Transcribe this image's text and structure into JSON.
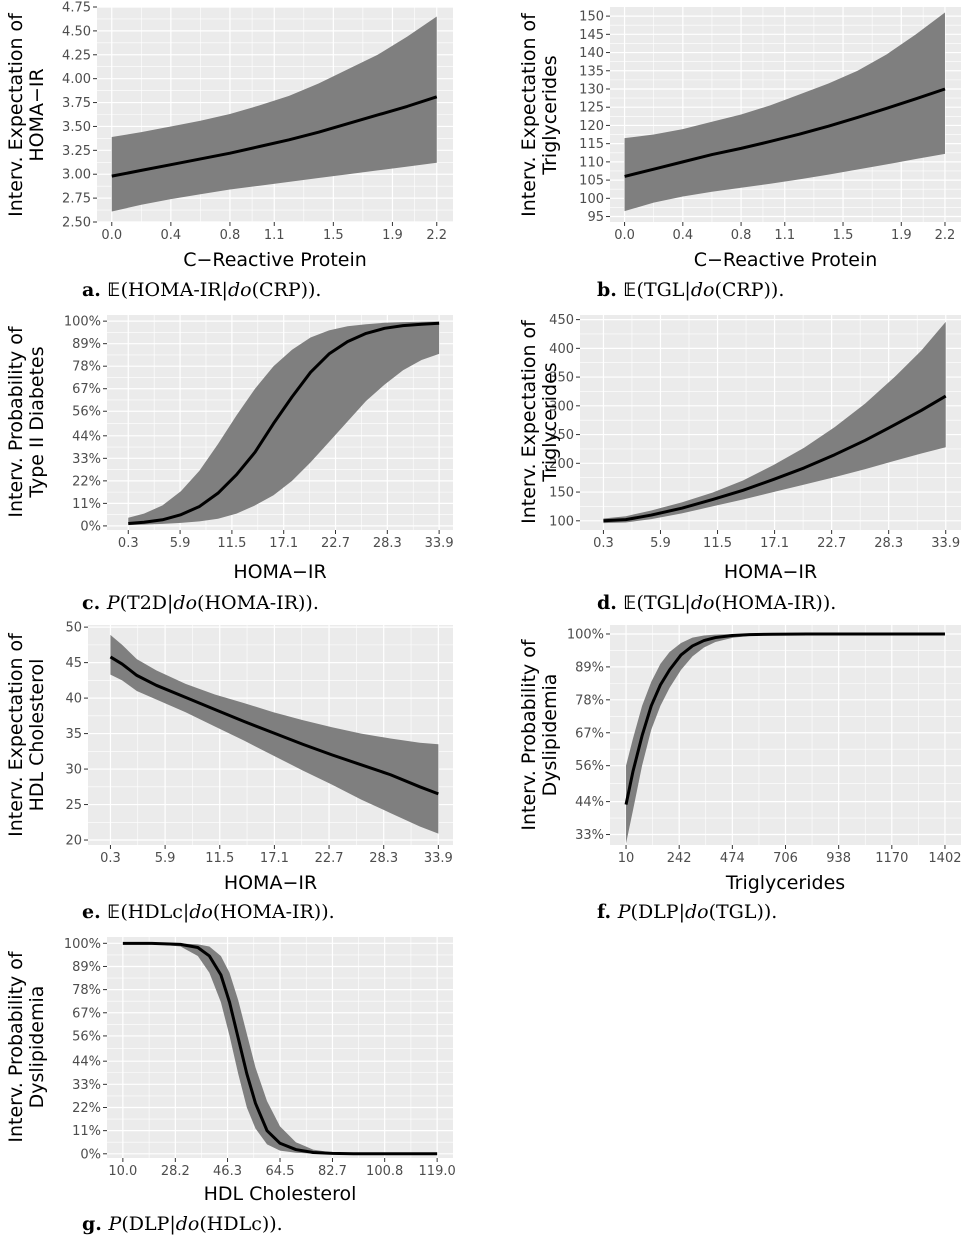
{
  "colors": {
    "panel": "#ebebeb",
    "grid": "#ffffff",
    "band": "#7f7f7f",
    "line": "#000000",
    "tick_text": "#4d4d4d"
  },
  "chart_data": [
    {
      "id": "a",
      "type": "line",
      "xlabel": "C−Reactive Protein",
      "ylabel": [
        "Interv. Expectation of",
        "HOMA−IR"
      ],
      "xticks": [
        "0.0",
        "0.4",
        "0.8",
        "1.1",
        "1.5",
        "1.9",
        "2.2"
      ],
      "xtick_values": [
        0.0,
        0.4,
        0.8,
        1.1,
        1.5,
        1.9,
        2.2
      ],
      "yticks": [
        "2.50",
        "2.75",
        "3.00",
        "3.25",
        "3.50",
        "3.75",
        "4.00",
        "4.25",
        "4.50",
        "4.75"
      ],
      "ytick_values": [
        2.5,
        2.75,
        3.0,
        3.25,
        3.5,
        3.75,
        4.0,
        4.25,
        4.5,
        4.75
      ],
      "xlim": [
        -0.1,
        2.31
      ],
      "ylim": [
        2.5,
        4.75
      ],
      "x": [
        0.0,
        0.2,
        0.4,
        0.6,
        0.8,
        1.0,
        1.2,
        1.4,
        1.6,
        1.8,
        2.0,
        2.2
      ],
      "mean": [
        2.98,
        3.04,
        3.1,
        3.16,
        3.22,
        3.29,
        3.36,
        3.44,
        3.53,
        3.62,
        3.71,
        3.81
      ],
      "lower": [
        2.61,
        2.68,
        2.74,
        2.79,
        2.84,
        2.88,
        2.92,
        2.96,
        3.0,
        3.04,
        3.08,
        3.12
      ],
      "upper": [
        3.39,
        3.44,
        3.5,
        3.56,
        3.63,
        3.72,
        3.82,
        3.95,
        4.1,
        4.25,
        4.44,
        4.65
      ],
      "caption": {
        "label": "a.",
        "op": "𝔼",
        "parts": [
          "(HOMA-IR|",
          "do",
          "(CRP))."
        ]
      }
    },
    {
      "id": "b",
      "type": "line",
      "xlabel": "C−Reactive Protein",
      "ylabel": [
        "Interv. Expectation of",
        "Triglycerides"
      ],
      "xticks": [
        "0.0",
        "0.4",
        "0.8",
        "1.1",
        "1.5",
        "1.9",
        "2.2"
      ],
      "xtick_values": [
        0.0,
        0.4,
        0.8,
        1.1,
        1.5,
        1.9,
        2.2
      ],
      "yticks": [
        "95",
        "100",
        "105",
        "110",
        "115",
        "120",
        "125",
        "130",
        "135",
        "140",
        "145",
        "150"
      ],
      "ytick_values": [
        95,
        100,
        105,
        110,
        115,
        120,
        125,
        130,
        135,
        140,
        145,
        150
      ],
      "xlim": [
        -0.1,
        2.31
      ],
      "ylim": [
        93.5,
        152.5
      ],
      "x": [
        0.0,
        0.2,
        0.4,
        0.6,
        0.8,
        1.0,
        1.2,
        1.4,
        1.6,
        1.8,
        2.0,
        2.2
      ],
      "mean": [
        106,
        108,
        110,
        112,
        113.7,
        115.6,
        117.6,
        119.8,
        122.2,
        124.7,
        127.3,
        130
      ],
      "lower": [
        96.5,
        98.8,
        100.5,
        101.8,
        102.9,
        104,
        105.2,
        106.5,
        107.9,
        109.3,
        110.8,
        112.2
      ],
      "upper": [
        116.5,
        117.5,
        119,
        121,
        123,
        125.5,
        128.5,
        131.5,
        135,
        139.5,
        145,
        151
      ],
      "caption": {
        "label": "b.",
        "op": "𝔼",
        "parts": [
          "(TGL|",
          "do",
          "(CRP))."
        ]
      }
    },
    {
      "id": "c",
      "type": "line",
      "xlabel": "HOMA−IR",
      "ylabel": [
        "Interv. Probability of",
        "Type II Diabetes"
      ],
      "xticks": [
        "0.3",
        "5.9",
        "11.5",
        "17.1",
        "22.7",
        "28.3",
        "33.9"
      ],
      "xtick_values": [
        0.3,
        5.9,
        11.5,
        17.1,
        22.7,
        28.3,
        33.9
      ],
      "yticks": [
        "0%",
        "11%",
        "22%",
        "33%",
        "44%",
        "56%",
        "67%",
        "78%",
        "89%",
        "100%"
      ],
      "ytick_values": [
        0,
        11,
        22,
        33,
        44,
        56,
        67,
        78,
        89,
        100
      ],
      "xlim": [
        -2.0,
        35.4
      ],
      "ylim": [
        -2,
        103
      ],
      "x": [
        0.3,
        2.0,
        4.0,
        6.0,
        8.0,
        10.0,
        12.0,
        14.0,
        16.0,
        18.0,
        20.0,
        22.0,
        24.0,
        26.0,
        28.0,
        30.0,
        32.0,
        33.9
      ],
      "mean": [
        1.2,
        1.8,
        3.0,
        5.5,
        9.5,
        16,
        25,
        36,
        50,
        63,
        75,
        84,
        90,
        94,
        96.5,
        97.8,
        98.5,
        99
      ],
      "lower": [
        0.4,
        0.6,
        1.0,
        1.5,
        2.2,
        3.5,
        6.0,
        10,
        15,
        22,
        31,
        41,
        51,
        61,
        69,
        76,
        81,
        84
      ],
      "upper": [
        4.0,
        6.0,
        10,
        17,
        27,
        40,
        54,
        67,
        78,
        86,
        92,
        95.5,
        97.5,
        98.5,
        99.2,
        99.5,
        99.7,
        99.8
      ],
      "caption": {
        "label": "c.",
        "op": "P",
        "parts": [
          "(T2D|",
          "do",
          "(HOMA-IR))."
        ]
      }
    },
    {
      "id": "d",
      "type": "line",
      "xlabel": "HOMA−IR",
      "ylabel": [
        "Interv. Expectation of",
        "Triglycerides"
      ],
      "xticks": [
        "0.3",
        "5.9",
        "11.5",
        "17.1",
        "22.7",
        "28.3",
        "33.9"
      ],
      "xtick_values": [
        0.3,
        5.9,
        11.5,
        17.1,
        22.7,
        28.3,
        33.9
      ],
      "yticks": [
        "100",
        "150",
        "200",
        "250",
        "300",
        "350",
        "400",
        "450"
      ],
      "ytick_values": [
        100,
        150,
        200,
        250,
        300,
        350,
        400,
        450
      ],
      "xlim": [
        -2.0,
        35.4
      ],
      "ylim": [
        84,
        458
      ],
      "x": [
        0.3,
        2.5,
        5.0,
        8.0,
        11.0,
        14.0,
        17.0,
        20.0,
        23.0,
        26.0,
        29.0,
        31.5,
        33.9
      ],
      "mean": [
        100,
        102,
        110,
        122,
        137,
        153,
        172,
        192,
        215,
        240,
        268,
        292,
        317
      ],
      "lower": [
        96,
        97,
        103,
        113,
        125,
        137,
        150,
        163,
        176,
        190,
        205,
        217,
        228
      ],
      "upper": [
        104,
        108,
        118,
        132,
        149,
        170,
        197,
        227,
        263,
        304,
        352,
        396,
        446
      ],
      "caption": {
        "label": "d.",
        "op": "𝔼",
        "parts": [
          "(TGL|",
          "do",
          "(HOMA-IR))."
        ]
      }
    },
    {
      "id": "e",
      "type": "line",
      "xlabel": "HOMA−IR",
      "ylabel": [
        "Interv. Expectation of",
        "HDL Cholesterol"
      ],
      "xticks": [
        "0.3",
        "5.9",
        "11.5",
        "17.1",
        "22.7",
        "28.3",
        "33.9"
      ],
      "xtick_values": [
        0.3,
        5.9,
        11.5,
        17.1,
        22.7,
        28.3,
        33.9
      ],
      "yticks": [
        "20",
        "25",
        "30",
        "35",
        "40",
        "45",
        "50"
      ],
      "ytick_values": [
        20,
        25,
        30,
        35,
        40,
        45,
        50
      ],
      "xlim": [
        -2.0,
        35.4
      ],
      "ylim": [
        19.3,
        50.3
      ],
      "x": [
        0.3,
        1.5,
        3.0,
        5.0,
        8.0,
        11.0,
        14.0,
        17.0,
        20.0,
        23.0,
        26.0,
        29.0,
        32.0,
        33.9
      ],
      "mean": [
        45.8,
        44.8,
        43.2,
        41.8,
        40.1,
        38.4,
        36.7,
        35.1,
        33.5,
        32.0,
        30.6,
        29.2,
        27.5,
        26.5
      ],
      "lower": [
        43.3,
        42.5,
        41.0,
        39.8,
        38.0,
        36.0,
        34.0,
        31.9,
        29.8,
        27.8,
        25.7,
        23.8,
        21.9,
        20.9
      ],
      "upper": [
        48.9,
        47.5,
        45.5,
        43.9,
        42.0,
        40.5,
        39.3,
        38.0,
        36.9,
        35.9,
        35.0,
        34.3,
        33.7,
        33.5
      ],
      "caption": {
        "label": "e.",
        "op": "𝔼",
        "parts": [
          "(HDLc|",
          "do",
          "(HOMA-IR))."
        ]
      }
    },
    {
      "id": "f",
      "type": "line",
      "xlabel": "Triglycerides",
      "ylabel": [
        "Interv. Probability of",
        "Dyslipidemia"
      ],
      "xticks": [
        "10",
        "242",
        "474",
        "706",
        "938",
        "1170",
        "1402"
      ],
      "xtick_values": [
        10,
        242,
        474,
        706,
        938,
        1170,
        1402
      ],
      "yticks": [
        "33%",
        "44%",
        "56%",
        "67%",
        "78%",
        "89%",
        "100%"
      ],
      "ytick_values": [
        33,
        44,
        56,
        67,
        78,
        89,
        100
      ],
      "xlim": [
        -60,
        1472
      ],
      "ylim": [
        29.5,
        103
      ],
      "x": [
        10,
        40,
        80,
        120,
        160,
        200,
        250,
        300,
        350,
        400,
        474,
        550,
        650,
        800,
        1000,
        1200,
        1402
      ],
      "mean": [
        43,
        54,
        66,
        76,
        83,
        88,
        93,
        96,
        97.8,
        98.8,
        99.5,
        99.8,
        99.9,
        100,
        100,
        100,
        100
      ],
      "lower": [
        30,
        41,
        56,
        68,
        76,
        82,
        88,
        92.5,
        95.5,
        97.3,
        98.7,
        99.4,
        99.8,
        100,
        100,
        100,
        100
      ],
      "upper": [
        56,
        65,
        76,
        84,
        90,
        94,
        97,
        98.8,
        99.5,
        99.8,
        99.95,
        100,
        100,
        100,
        100,
        100,
        100
      ],
      "caption": {
        "label": "f.",
        "op": "P",
        "parts": [
          "(DLP|",
          "do",
          "(TGL))."
        ]
      }
    },
    {
      "id": "g",
      "type": "line",
      "xlabel": "HDL Cholesterol",
      "ylabel": [
        "Interv. Probability of",
        "Dyslipidemia"
      ],
      "xticks": [
        "10.0",
        "28.2",
        "46.3",
        "64.5",
        "82.7",
        "100.8",
        "119.0"
      ],
      "xtick_values": [
        10.0,
        28.2,
        46.3,
        64.5,
        82.7,
        100.8,
        119.0
      ],
      "yticks": [
        "0%",
        "11%",
        "22%",
        "33%",
        "44%",
        "56%",
        "67%",
        "78%",
        "89%",
        "100%"
      ],
      "ytick_values": [
        0,
        11,
        22,
        33,
        44,
        56,
        67,
        78,
        89,
        100
      ],
      "xlim": [
        4.5,
        124.5
      ],
      "ylim": [
        -2,
        103
      ],
      "x": [
        10,
        20,
        30,
        36,
        40,
        44,
        47,
        50,
        53,
        56,
        60,
        64.5,
        70,
        76,
        82.7,
        90,
        100,
        119
      ],
      "mean": [
        100,
        100,
        99.5,
        98,
        94,
        85,
        72,
        55,
        38,
        24,
        11,
        5,
        2,
        0.6,
        0.2,
        0,
        0,
        0
      ],
      "lower": [
        100,
        99.8,
        98.5,
        94,
        86,
        72,
        56,
        38,
        22,
        12,
        4.5,
        1.5,
        0.5,
        0.1,
        0,
        0,
        0,
        0
      ],
      "upper": [
        100,
        100,
        99.9,
        99.5,
        98.5,
        94,
        86,
        73,
        57,
        41,
        25,
        13,
        5.5,
        2,
        0.6,
        0.2,
        0,
        0
      ],
      "caption": {
        "label": "g.",
        "op": "P",
        "parts": [
          "(DLP|",
          "do",
          "(HDLc))."
        ]
      }
    }
  ]
}
